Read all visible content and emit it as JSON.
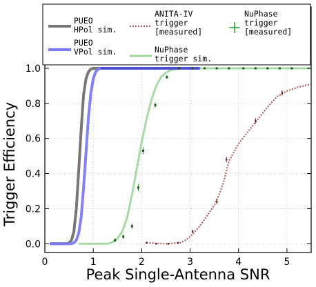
{
  "chart_data": {
    "type": "line",
    "xlabel": "Peak Single-Antenna SNR",
    "ylabel": "Trigger Efficiency",
    "xlim": [
      0,
      5.5
    ],
    "ylim": [
      -0.05,
      1.35
    ],
    "xticks": [
      0,
      1,
      2,
      3,
      4,
      5
    ],
    "xtick_labels": [
      "0",
      "1",
      "2",
      "3",
      "4",
      "5"
    ],
    "yticks": [
      0.0,
      0.2,
      0.4,
      0.6,
      0.8,
      1.0
    ],
    "ytick_labels": [
      "0.0",
      "0.2",
      "0.4",
      "0.6",
      "0.8",
      "1.0"
    ],
    "grid": true,
    "legend_position": "top",
    "series": [
      {
        "name": "PUEO\nHPol sim.",
        "style": "line",
        "color": "#777777",
        "x": [
          0.1,
          0.45,
          0.5,
          0.55,
          0.6,
          0.65,
          0.7,
          0.75,
          0.8,
          0.85,
          0.9,
          0.95,
          1.0,
          1.05,
          1.1,
          3.2
        ],
        "y": [
          0.0,
          0.0,
          0.005,
          0.02,
          0.07,
          0.2,
          0.42,
          0.65,
          0.85,
          0.94,
          0.98,
          0.995,
          1.0,
          1.0,
          1.0,
          1.0
        ]
      },
      {
        "name": "PUEO\nVPol sim.",
        "style": "line",
        "color": "#7b7bf5",
        "x": [
          0.1,
          0.55,
          0.6,
          0.65,
          0.7,
          0.75,
          0.8,
          0.85,
          0.9,
          0.95,
          1.0,
          1.05,
          1.1,
          1.15,
          1.2,
          3.2
        ],
        "y": [
          0.0,
          0.0,
          0.005,
          0.02,
          0.06,
          0.15,
          0.32,
          0.52,
          0.72,
          0.86,
          0.94,
          0.98,
          0.995,
          1.0,
          1.0,
          1.0
        ]
      },
      {
        "name": "ANITA-IV\ntrigger\n[measured]",
        "style": "dotted",
        "color": "#b86a6a",
        "x": [
          2.1,
          2.5,
          2.8,
          2.9,
          3.0,
          3.1,
          3.2,
          3.3,
          3.4,
          3.5,
          3.6,
          3.7,
          3.8,
          3.9,
          4.0,
          4.2,
          4.4,
          4.6,
          4.8,
          5.0,
          5.2,
          5.5
        ],
        "y": [
          0.005,
          0.0,
          0.005,
          0.02,
          0.04,
          0.07,
          0.1,
          0.14,
          0.18,
          0.22,
          0.28,
          0.36,
          0.47,
          0.52,
          0.57,
          0.64,
          0.71,
          0.78,
          0.84,
          0.87,
          0.89,
          0.91
        ]
      },
      {
        "name": "NuPhase\ntrigger sim.",
        "style": "line",
        "color": "#9ed69b",
        "x": [
          0.7,
          1.3,
          1.4,
          1.5,
          1.6,
          1.7,
          1.8,
          1.9,
          2.0,
          2.1,
          2.2,
          2.3,
          2.4,
          2.5,
          2.6,
          2.7,
          2.8,
          3.0,
          5.5
        ],
        "y": [
          0.0,
          0.0,
          0.01,
          0.03,
          0.07,
          0.15,
          0.28,
          0.43,
          0.58,
          0.71,
          0.82,
          0.9,
          0.95,
          0.975,
          0.99,
          0.995,
          1.0,
          1.0,
          1.0
        ]
      },
      {
        "name": "NuPhase\ntrigger\n[measured]",
        "style": "errorbar",
        "color": "#2a9d2a",
        "x": [
          1.45,
          1.62,
          1.8,
          1.93,
          2.03,
          2.28,
          2.52,
          2.77,
          3.05,
          3.3,
          3.55,
          3.8,
          4.1,
          4.35,
          4.6,
          4.85,
          5.1
        ],
        "y": [
          0.02,
          0.04,
          0.1,
          0.32,
          0.53,
          0.79,
          0.95,
          1.0,
          1.0,
          1.0,
          1.0,
          1.0,
          1.0,
          1.0,
          1.0,
          1.0,
          1.0
        ],
        "err": [
          0.01,
          0.012,
          0.015,
          0.02,
          0.02,
          0.015,
          0.01,
          0.005,
          0.005,
          0.005,
          0.005,
          0.005,
          0.005,
          0.005,
          0.005,
          0.005,
          0.005
        ]
      }
    ],
    "anita_markers": {
      "x": [
        2.1,
        2.3,
        2.55,
        2.75,
        3.05,
        3.55,
        3.75,
        4.35,
        4.9
      ],
      "y": [
        0.005,
        0.0,
        0.0,
        0.005,
        0.07,
        0.24,
        0.48,
        0.7,
        0.86
      ],
      "err": [
        0.005,
        0.005,
        0.005,
        0.005,
        0.01,
        0.015,
        0.015,
        0.015,
        0.015
      ]
    }
  }
}
